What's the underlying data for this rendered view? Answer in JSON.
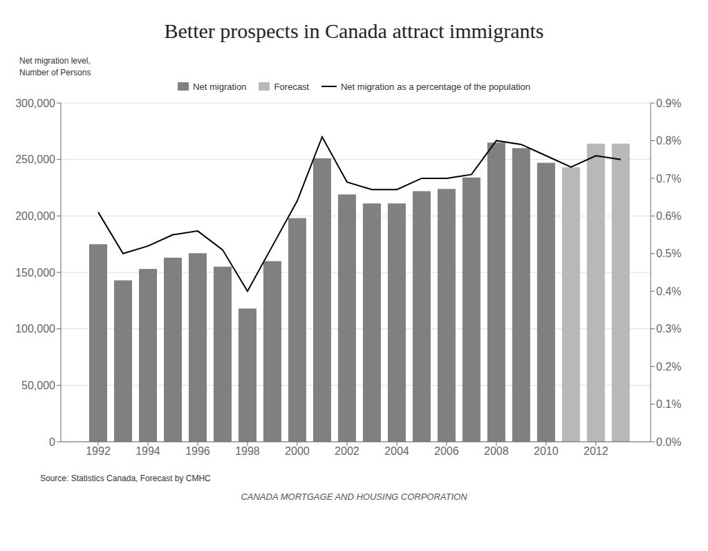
{
  "chart_data": {
    "type": "bar",
    "title": "Better prospects in Canada attract immigrants",
    "y_label": "Net migration level,\nNumber of Persons",
    "source": "Source: Statistics Canada, Forecast by CMHC",
    "footer": "CANADA MORTGAGE AND HOUSING CORPORATION",
    "x": [
      1992,
      1993,
      1994,
      1995,
      1996,
      1997,
      1998,
      1999,
      2000,
      2001,
      2002,
      2003,
      2004,
      2005,
      2006,
      2007,
      2008,
      2009,
      2010,
      2011,
      2012,
      2013
    ],
    "xlim": [
      1990.5,
      2014.2
    ],
    "xticks": [
      1992,
      1994,
      1996,
      1998,
      2000,
      2002,
      2004,
      2006,
      2008,
      2010,
      2012
    ],
    "ylim": [
      0,
      300000
    ],
    "yticks": [
      0,
      {
        "value": 50000,
        "label": "50,000"
      },
      {
        "value": 100000,
        "label": "100,000"
      },
      {
        "value": 150000,
        "label": "150,000"
      },
      {
        "value": 200000,
        "label": "200,000"
      },
      {
        "value": 250000,
        "label": "250,000"
      },
      {
        "value": 300000,
        "label": "300,000"
      }
    ],
    "y2lim": [
      0.0,
      0.009
    ],
    "y2ticks": [
      {
        "value": 0.0,
        "label": "0.0%"
      },
      {
        "value": 0.001,
        "label": "0.1%"
      },
      {
        "value": 0.002,
        "label": "0.2%"
      },
      {
        "value": 0.003,
        "label": "0.3%"
      },
      {
        "value": 0.004,
        "label": "0.4%"
      },
      {
        "value": 0.005,
        "label": "0.5%"
      },
      {
        "value": 0.006,
        "label": "0.6%"
      },
      {
        "value": 0.007,
        "label": "0.7%"
      },
      {
        "value": 0.008,
        "label": "0.8%"
      },
      {
        "value": 0.009,
        "label": "0.9%"
      }
    ],
    "grid": true,
    "legend": "top",
    "series": [
      {
        "name": "Net migration",
        "type": "bar",
        "color": "#808080",
        "values": [
          175000,
          143000,
          153000,
          163000,
          167000,
          155000,
          118000,
          160000,
          198000,
          251000,
          219000,
          211000,
          211000,
          222000,
          224000,
          234000,
          265000,
          260000,
          247000,
          null,
          null,
          null
        ]
      },
      {
        "name": "Forecast",
        "type": "bar",
        "color": "#b8b8b8",
        "values": [
          null,
          null,
          null,
          null,
          null,
          null,
          null,
          null,
          null,
          null,
          null,
          null,
          null,
          null,
          null,
          null,
          null,
          null,
          null,
          243000,
          264000,
          264000
        ]
      },
      {
        "name": "Net migration as a percentage of the population",
        "type": "line",
        "axis": "y2",
        "color": "#000000",
        "values": [
          0.0061,
          0.005,
          0.0052,
          0.0055,
          0.0056,
          0.0051,
          0.004,
          0.0052,
          0.0064,
          0.0081,
          0.0069,
          0.0067,
          0.0067,
          0.007,
          0.007,
          0.0071,
          0.008,
          0.0079,
          0.0076,
          0.0073,
          0.0076,
          0.0075
        ]
      }
    ]
  }
}
